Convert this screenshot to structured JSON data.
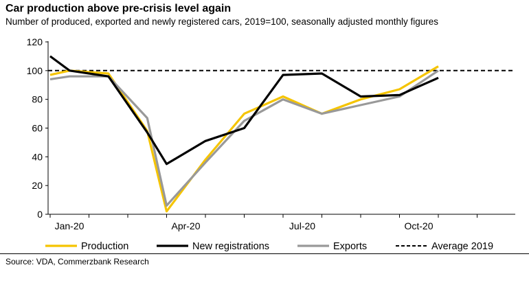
{
  "chart_data": {
    "type": "line",
    "title": "Car production above pre-crisis level again",
    "subtitle": "Number of produced, exported and newly registered cars, 2019=100, seasonally adjusted monthly figures",
    "xlabel": "",
    "ylabel": "",
    "ylim": [
      0,
      120
    ],
    "xlim": [
      0,
      11
    ],
    "yticks": [
      0,
      20,
      40,
      60,
      80,
      100,
      120
    ],
    "xtick_labels": [
      {
        "x": 0,
        "label": "Jan-20"
      },
      {
        "x": 3,
        "label": "Apr-20"
      },
      {
        "x": 6,
        "label": "Jul-20"
      },
      {
        "x": 9,
        "label": "Oct-20"
      }
    ],
    "grid": false,
    "legend": "bottom",
    "series": [
      {
        "name": "Production",
        "color": "#f5c400",
        "x": [
          0,
          0.5,
          1.5,
          2.5,
          3,
          4,
          5,
          6,
          7,
          8,
          9,
          10
        ],
        "values": [
          97,
          100,
          98,
          58,
          2,
          38,
          70,
          82,
          70,
          80,
          87,
          103
        ]
      },
      {
        "name": "Exports",
        "color": "#999999",
        "x": [
          0,
          0.5,
          1.5,
          2.5,
          3,
          4,
          5,
          6,
          7,
          8,
          9,
          10
        ],
        "values": [
          94,
          96,
          96,
          67,
          6,
          36,
          65,
          80,
          70,
          76,
          82,
          100
        ]
      },
      {
        "name": "New registrations",
        "color": "#000000",
        "x": [
          0,
          0.5,
          1.5,
          2.5,
          3,
          4,
          5,
          6,
          7,
          8,
          9,
          10
        ],
        "values": [
          110,
          100,
          96,
          57,
          35,
          51,
          60,
          97,
          98,
          82,
          83,
          95
        ]
      },
      {
        "name": "Average 2019",
        "color": "#000000",
        "style": "dashed",
        "x": [
          0,
          11
        ],
        "values": [
          100,
          100
        ]
      }
    ],
    "legend_order": [
      "Production",
      "New registrations",
      "Exports",
      "Average 2019"
    ]
  },
  "footer": {
    "source": "Source: VDA, Commerzbank Research"
  }
}
